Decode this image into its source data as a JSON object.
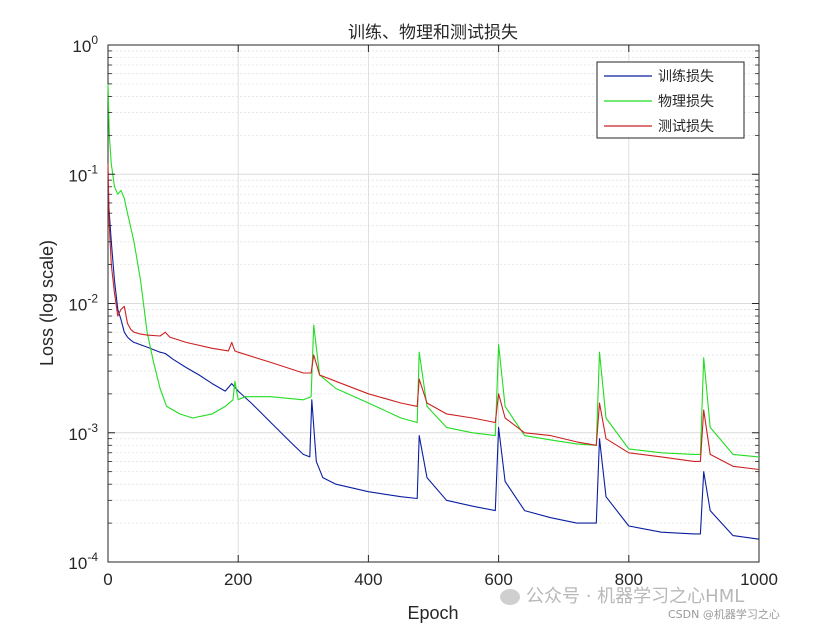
{
  "chart_data": {
    "type": "line",
    "title": "训练、物理和测试损失",
    "xlabel": "Epoch",
    "ylabel": "Loss (log scale)",
    "xlim": [
      0,
      1000
    ],
    "ylim": [
      0.0001,
      1
    ],
    "yscale": "log",
    "grid": true,
    "legend_position": "top-right",
    "x_ticks": [
      "0",
      "200",
      "400",
      "600",
      "800",
      "1000"
    ],
    "y_ticks": [
      {
        "base": "10",
        "exp": "0"
      },
      {
        "base": "10",
        "exp": "-1"
      },
      {
        "base": "10",
        "exp": "-2"
      },
      {
        "base": "10",
        "exp": "-3"
      },
      {
        "base": "10",
        "exp": "-4"
      }
    ],
    "series": [
      {
        "name": "训练损失",
        "color": "#0a1fa0",
        "x": [
          0,
          2,
          5,
          10,
          15,
          20,
          25,
          30,
          35,
          40,
          60,
          80,
          88,
          100,
          120,
          140,
          160,
          180,
          190,
          200,
          220,
          250,
          280,
          300,
          310,
          313,
          320,
          330,
          350,
          400,
          450,
          475,
          478,
          490,
          520,
          560,
          595,
          600,
          610,
          640,
          680,
          720,
          750,
          755,
          765,
          800,
          850,
          900,
          910,
          915,
          925,
          960,
          1000
        ],
        "values": [
          0.07,
          0.05,
          0.03,
          0.015,
          0.009,
          0.0075,
          0.006,
          0.0055,
          0.0052,
          0.005,
          0.0046,
          0.0042,
          0.0041,
          0.0037,
          0.0032,
          0.0028,
          0.0024,
          0.0021,
          0.0024,
          0.0021,
          0.0017,
          0.0012,
          0.00085,
          0.00068,
          0.00065,
          0.0018,
          0.0006,
          0.00045,
          0.0004,
          0.00035,
          0.00032,
          0.00031,
          0.00095,
          0.00045,
          0.0003,
          0.00027,
          0.00025,
          0.0011,
          0.00042,
          0.00025,
          0.00022,
          0.0002,
          0.0002,
          0.0009,
          0.00032,
          0.00019,
          0.00017,
          0.000165,
          0.000165,
          0.0005,
          0.00025,
          0.00016,
          0.00015
        ]
      },
      {
        "name": "物理损失",
        "color": "#22dd22",
        "x": [
          0,
          2,
          5,
          10,
          15,
          20,
          25,
          30,
          40,
          50,
          60,
          70,
          80,
          90,
          100,
          110,
          130,
          160,
          180,
          192,
          195,
          200,
          210,
          250,
          300,
          312,
          316,
          325,
          350,
          400,
          450,
          475,
          478,
          490,
          520,
          560,
          595,
          600,
          610,
          640,
          680,
          720,
          750,
          755,
          765,
          800,
          850,
          900,
          910,
          915,
          925,
          960,
          1000
        ],
        "values": [
          0.5,
          0.2,
          0.12,
          0.08,
          0.07,
          0.075,
          0.065,
          0.05,
          0.03,
          0.015,
          0.006,
          0.0035,
          0.0022,
          0.0016,
          0.0015,
          0.0014,
          0.0013,
          0.0014,
          0.0016,
          0.0018,
          0.0025,
          0.0018,
          0.0019,
          0.0019,
          0.0018,
          0.0019,
          0.0068,
          0.0028,
          0.0022,
          0.0017,
          0.0013,
          0.0012,
          0.0042,
          0.0016,
          0.0011,
          0.001,
          0.00095,
          0.0048,
          0.0016,
          0.00095,
          0.00088,
          0.00082,
          0.0008,
          0.0042,
          0.0013,
          0.00075,
          0.0007,
          0.00068,
          0.00068,
          0.0038,
          0.0011,
          0.00068,
          0.00065
        ]
      },
      {
        "name": "测试损失",
        "color": "#cc2222",
        "x": [
          0,
          2,
          5,
          10,
          15,
          20,
          25,
          30,
          35,
          40,
          50,
          60,
          80,
          88,
          95,
          120,
          160,
          185,
          190,
          195,
          200,
          250,
          300,
          312,
          316,
          325,
          350,
          400,
          450,
          475,
          478,
          490,
          520,
          560,
          595,
          600,
          610,
          640,
          680,
          720,
          750,
          755,
          765,
          800,
          850,
          900,
          910,
          915,
          925,
          960,
          1000
        ],
        "values": [
          0.12,
          0.04,
          0.02,
          0.012,
          0.008,
          0.009,
          0.0095,
          0.007,
          0.0063,
          0.006,
          0.0058,
          0.0057,
          0.0056,
          0.006,
          0.0055,
          0.005,
          0.0045,
          0.0043,
          0.005,
          0.0043,
          0.0042,
          0.0035,
          0.0029,
          0.0029,
          0.004,
          0.0028,
          0.0025,
          0.002,
          0.0017,
          0.0016,
          0.0026,
          0.0017,
          0.0014,
          0.0013,
          0.0012,
          0.002,
          0.0013,
          0.001,
          0.00095,
          0.00085,
          0.0008,
          0.0017,
          0.0009,
          0.0007,
          0.00065,
          0.0006,
          0.0006,
          0.0015,
          0.00068,
          0.00055,
          0.00052
        ]
      }
    ]
  },
  "watermark": {
    "text": "公众号 · 机器学习之心HML",
    "source": "CSDN @机器学习之心"
  }
}
